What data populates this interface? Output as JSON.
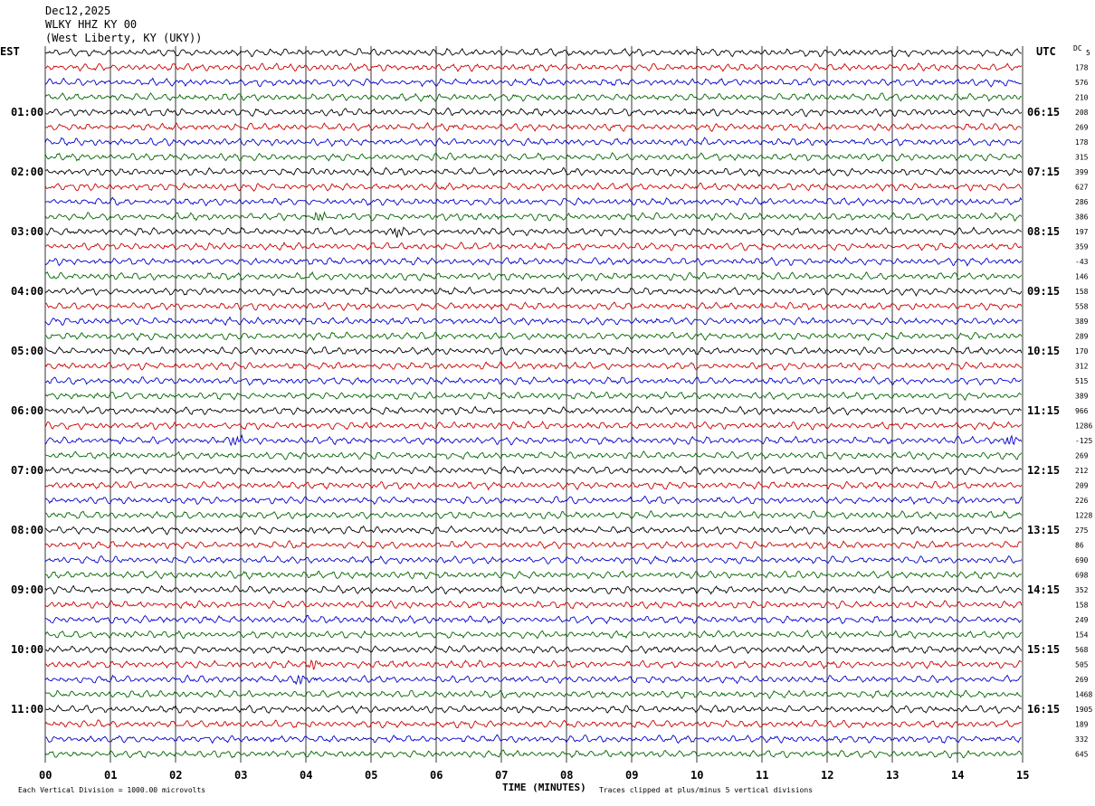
{
  "header": {
    "date": "Dec12,2025",
    "station": "WLKY HHZ KY 00",
    "location": "(West Liberty, KY (UKY))"
  },
  "left_zone": "EST",
  "right_zone": "UTC",
  "dc_header": "DC",
  "x_axis_label": "TIME (MINUTES)",
  "footer_left": "Each Vertical Division = 1000.00 microvolts",
  "footer_right": "Traces clipped at plus/minus 5 vertical divisions",
  "colors": {
    "black": "#000000",
    "red": "#cc0000",
    "blue": "#0000cc",
    "green": "#006600"
  },
  "chart_data": {
    "type": "line",
    "title": "WLKY HHZ KY 00",
    "xlabel": "TIME (MINUTES)",
    "xlim": [
      0,
      15
    ],
    "x_ticks": [
      "00",
      "01",
      "02",
      "03",
      "04",
      "05",
      "06",
      "07",
      "08",
      "09",
      "10",
      "11",
      "12",
      "13",
      "14",
      "15"
    ],
    "left_hour_labels": [
      "01:00",
      "02:00",
      "03:00",
      "04:00",
      "05:00",
      "06:00",
      "07:00",
      "08:00",
      "09:00",
      "10:00",
      "11:00"
    ],
    "right_hour_labels": [
      "06:15",
      "07:15",
      "08:15",
      "09:15",
      "10:15",
      "11:15",
      "12:15",
      "13:15",
      "14:15",
      "15:15",
      "16:15"
    ],
    "trace_colors": [
      "black",
      "red",
      "blue",
      "green"
    ],
    "dc_offsets": [
      "5",
      "178",
      "576",
      "210",
      "208",
      "269",
      "178",
      "315",
      "399",
      "627",
      "286",
      "386",
      "197",
      "359",
      "-43",
      "146",
      "158",
      "558",
      "389",
      "289",
      "170",
      "312",
      "515",
      "389",
      "966",
      "1286",
      "-125",
      "269",
      "212",
      "209",
      "226",
      "1228",
      "275",
      "86",
      "690",
      "698",
      "352",
      "158",
      "249",
      "154",
      "568",
      "505",
      "269",
      "1468",
      "1905",
      "189",
      "332",
      "645"
    ],
    "events": [
      {
        "trace": 11,
        "minute": 4.2
      },
      {
        "trace": 12,
        "minute": 5.4
      },
      {
        "trace": 26,
        "minute": 2.9
      },
      {
        "trace": 26,
        "minute": 14.8
      },
      {
        "trace": 41,
        "minute": 4.1
      },
      {
        "trace": 42,
        "minute": 3.9
      }
    ]
  }
}
